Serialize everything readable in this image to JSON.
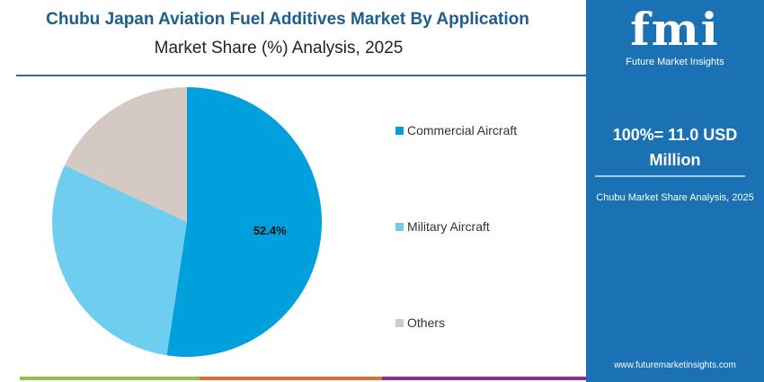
{
  "title": "Chubu Japan Aviation Fuel Additives Market By Application",
  "subtitle": "Market Share (%) Analysis, 2025",
  "panel": {
    "logo_text": "fmi",
    "logo_sub": "Future Market Insights",
    "total": "100%= 11.0 USD Million",
    "caption": "Chubu Market Share Analysis, 2025",
    "url": "www.futuremarketinsights.com",
    "color": "#1a71b3"
  },
  "chart_data": {
    "type": "pie",
    "title": "Chubu Japan Aviation Fuel Additives Market By Application",
    "subtitle": "Market Share (%) Analysis, 2025",
    "legend_position": "right",
    "slices": [
      {
        "label": "Commercial Aircraft",
        "value": 52.4,
        "data_label": "52.4%",
        "color": "#00a0dc"
      },
      {
        "label": "Military Aircraft",
        "value": 29.5,
        "color": "#6fcdf0"
      },
      {
        "label": "Others",
        "value": 18.1,
        "color": "#d5c9c3"
      }
    ]
  }
}
